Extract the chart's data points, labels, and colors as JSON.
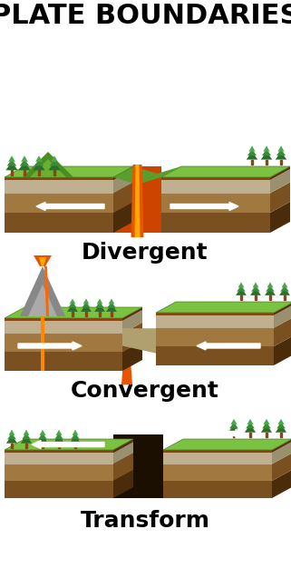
{
  "title": "PLATE BOUNDARIES",
  "labels": [
    "Divergent",
    "Convergent",
    "Transform"
  ],
  "bg_color": "#ffffff",
  "title_fontsize": 22,
  "label_fontsize": 18,
  "colors": {
    "grass_top": "#7bc142",
    "grass_dark": "#5a9e2f",
    "soil_top": "#c8a96e",
    "soil_mid": "#a07840",
    "soil_dark": "#7a5020",
    "rock_gray": "#a0a0a0",
    "rock_dark": "#808080",
    "lava": "#e8720c",
    "lava_bright": "#ff9922",
    "volcano_gray": "#b0b0b0",
    "arrow_white": "#ffffff",
    "tree_dark": "#2d6e2d",
    "tree_mid": "#3a8c3a",
    "tree_light": "#4aaa4a",
    "brown_edge": "#8B4513",
    "mantle_orange": "#cc5500"
  }
}
